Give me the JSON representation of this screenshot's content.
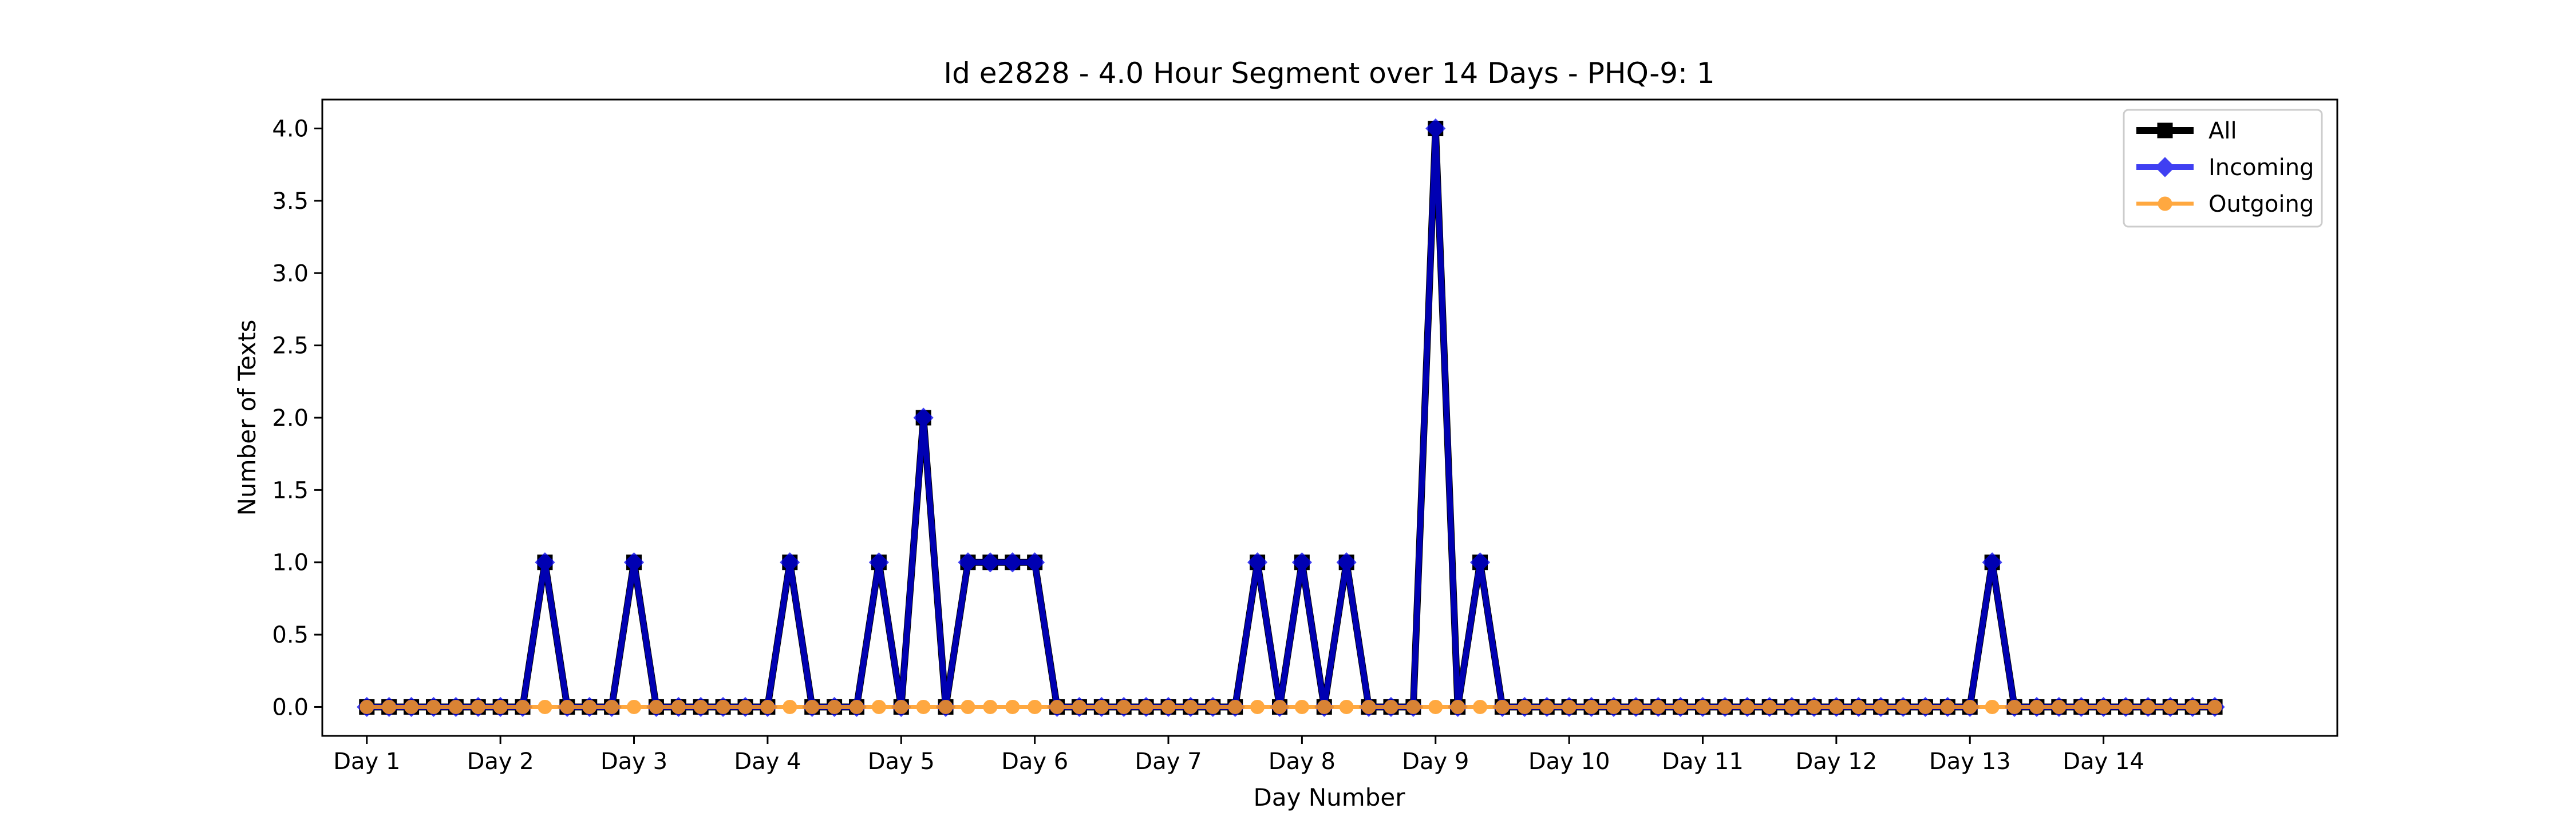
{
  "chart_data": {
    "type": "line",
    "title": "Id e2828 - 4.0 Hour Segment over 14 Days - PHQ-9: 1",
    "xlabel": "Day Number",
    "ylabel": "Number of Texts",
    "ylim": [
      -0.2,
      4.2
    ],
    "xlim": [
      -2.0,
      88.5
    ],
    "x_tick_positions": [
      0,
      6,
      12,
      18,
      24,
      30,
      36,
      42,
      48,
      54,
      60,
      66,
      72,
      78
    ],
    "x_tick_labels": [
      "Day 1",
      "Day 2",
      "Day 3",
      "Day 4",
      "Day 5",
      "Day 6",
      "Day 7",
      "Day 8",
      "Day 9",
      "Day 10",
      "Day 11",
      "Day 12",
      "Day 13",
      "Day 14"
    ],
    "y_ticks": [
      0.0,
      0.5,
      1.0,
      1.5,
      2.0,
      2.5,
      3.0,
      3.5,
      4.0
    ],
    "y_tick_labels": [
      "0.0",
      "0.5",
      "1.0",
      "1.5",
      "2.0",
      "2.5",
      "3.0",
      "3.5",
      "4.0"
    ],
    "grid": false,
    "legend_position": "top-right",
    "x": [
      0,
      1,
      2,
      3,
      4,
      5,
      6,
      7,
      8,
      9,
      10,
      11,
      12,
      13,
      14,
      15,
      16,
      17,
      18,
      19,
      20,
      21,
      22,
      23,
      24,
      25,
      26,
      27,
      28,
      29,
      30,
      31,
      32,
      33,
      34,
      35,
      36,
      37,
      38,
      39,
      40,
      41,
      42,
      43,
      44,
      45,
      46,
      47,
      48,
      49,
      50,
      51,
      52,
      53,
      54,
      55,
      56,
      57,
      58,
      59,
      60,
      61,
      62,
      63,
      64,
      65,
      66,
      67,
      68,
      69,
      70,
      71,
      72,
      73,
      74,
      75,
      76,
      77,
      78,
      79,
      80,
      81,
      82,
      83
    ],
    "series": [
      {
        "name": "All",
        "color": "#000000",
        "marker": "square",
        "values": [
          0,
          0,
          0,
          0,
          0,
          0,
          0,
          0,
          1,
          0,
          0,
          0,
          1,
          0,
          0,
          0,
          0,
          0,
          0,
          1,
          0,
          0,
          0,
          1,
          0,
          2,
          0,
          1,
          1,
          1,
          1,
          0,
          0,
          0,
          0,
          0,
          0,
          0,
          0,
          0,
          1,
          0,
          1,
          0,
          1,
          0,
          0,
          0,
          4,
          0,
          1,
          0,
          0,
          0,
          0,
          0,
          0,
          0,
          0,
          0,
          0,
          0,
          0,
          0,
          0,
          0,
          0,
          0,
          0,
          0,
          0,
          0,
          0,
          1,
          0,
          0,
          0,
          0,
          0,
          0,
          0,
          0,
          0,
          0
        ]
      },
      {
        "name": "Incoming",
        "color": "#0000ee",
        "marker": "diamond",
        "values": [
          0,
          0,
          0,
          0,
          0,
          0,
          0,
          0,
          1,
          0,
          0,
          0,
          1,
          0,
          0,
          0,
          0,
          0,
          0,
          1,
          0,
          0,
          0,
          1,
          0,
          2,
          0,
          1,
          1,
          1,
          1,
          0,
          0,
          0,
          0,
          0,
          0,
          0,
          0,
          0,
          1,
          0,
          1,
          0,
          1,
          0,
          0,
          0,
          4,
          0,
          1,
          0,
          0,
          0,
          0,
          0,
          0,
          0,
          0,
          0,
          0,
          0,
          0,
          0,
          0,
          0,
          0,
          0,
          0,
          0,
          0,
          0,
          0,
          1,
          0,
          0,
          0,
          0,
          0,
          0,
          0,
          0,
          0,
          0
        ]
      },
      {
        "name": "Outgoing",
        "color": "#ff9a1f",
        "marker": "circle",
        "values": [
          0,
          0,
          0,
          0,
          0,
          0,
          0,
          0,
          0,
          0,
          0,
          0,
          0,
          0,
          0,
          0,
          0,
          0,
          0,
          0,
          0,
          0,
          0,
          0,
          0,
          0,
          0,
          0,
          0,
          0,
          0,
          0,
          0,
          0,
          0,
          0,
          0,
          0,
          0,
          0,
          0,
          0,
          0,
          0,
          0,
          0,
          0,
          0,
          0,
          0,
          0,
          0,
          0,
          0,
          0,
          0,
          0,
          0,
          0,
          0,
          0,
          0,
          0,
          0,
          0,
          0,
          0,
          0,
          0,
          0,
          0,
          0,
          0,
          0,
          0,
          0,
          0,
          0,
          0,
          0,
          0,
          0,
          0,
          0
        ]
      }
    ]
  }
}
